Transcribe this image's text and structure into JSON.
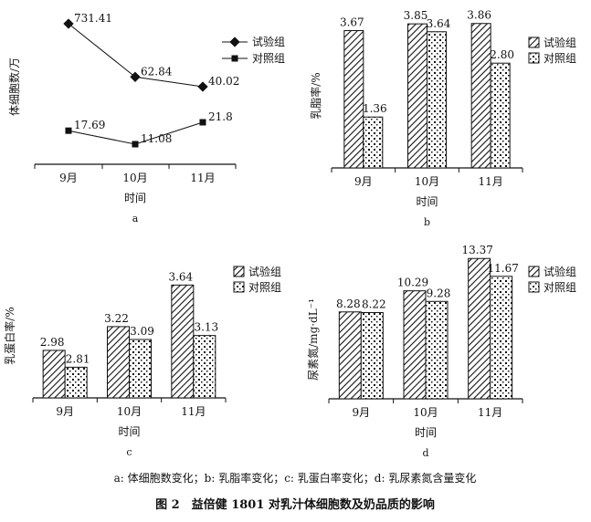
{
  "chart_data": [
    {
      "type": "line",
      "panel_label": "a",
      "categories": [
        "9月",
        "10月",
        "11月"
      ],
      "xlabel": "时间",
      "ylabel": "体细胞数/万",
      "series": [
        {
          "name": "试验组",
          "values": [
            731.41,
            62.84,
            40.02
          ],
          "labels": [
            "731.41",
            "62.84",
            "40.02"
          ]
        },
        {
          "name": "对照组",
          "values": [
            17.69,
            11.08,
            21.8
          ],
          "labels": [
            "17.69",
            "11.08",
            "21.8"
          ]
        }
      ]
    },
    {
      "type": "bar",
      "panel_label": "b",
      "categories": [
        "9月",
        "10月",
        "11月"
      ],
      "xlabel": "时间",
      "ylabel": "乳脂率/%",
      "ylim": [
        0,
        4
      ],
      "series": [
        {
          "name": "试验组",
          "values": [
            3.67,
            3.85,
            3.86
          ],
          "labels": [
            "3.67",
            "3.85",
            "3.86"
          ]
        },
        {
          "name": "对照组",
          "values": [
            1.36,
            3.64,
            2.8
          ],
          "labels": [
            "1.36",
            "3.64",
            "2.80"
          ]
        }
      ]
    },
    {
      "type": "bar",
      "panel_label": "c",
      "categories": [
        "9月",
        "10月",
        "11月"
      ],
      "xlabel": "时间",
      "ylabel": "乳蛋白率/%",
      "ylim": [
        2.5,
        3.8
      ],
      "series": [
        {
          "name": "试验组",
          "values": [
            2.98,
            3.22,
            3.64
          ],
          "labels": [
            "2.98",
            "3.22",
            "3.64"
          ]
        },
        {
          "name": "对照组",
          "values": [
            2.81,
            3.09,
            3.13
          ],
          "labels": [
            "2.81",
            "3.09",
            "3.13"
          ]
        }
      ]
    },
    {
      "type": "bar",
      "panel_label": "d",
      "categories": [
        "9月",
        "10月",
        "11月"
      ],
      "xlabel": "时间",
      "ylabel": "尿素氮/mg·dL⁻¹",
      "ylim": [
        0,
        14
      ],
      "series": [
        {
          "name": "试验组",
          "values": [
            8.28,
            10.29,
            13.37
          ],
          "labels": [
            "8.28",
            "10.29",
            "13.37"
          ]
        },
        {
          "name": "对照组",
          "values": [
            8.22,
            9.28,
            11.67
          ],
          "labels": [
            "8.22",
            "9.28",
            "11.67"
          ]
        }
      ]
    }
  ],
  "caption": "a: 体细胞数变化；b: 乳脂率变化；c: 乳蛋白率变化；d: 乳尿素氮含量变化",
  "figure_title": "图 2　益倍健 1801 对乳汁体细胞数及奶品质的影响"
}
